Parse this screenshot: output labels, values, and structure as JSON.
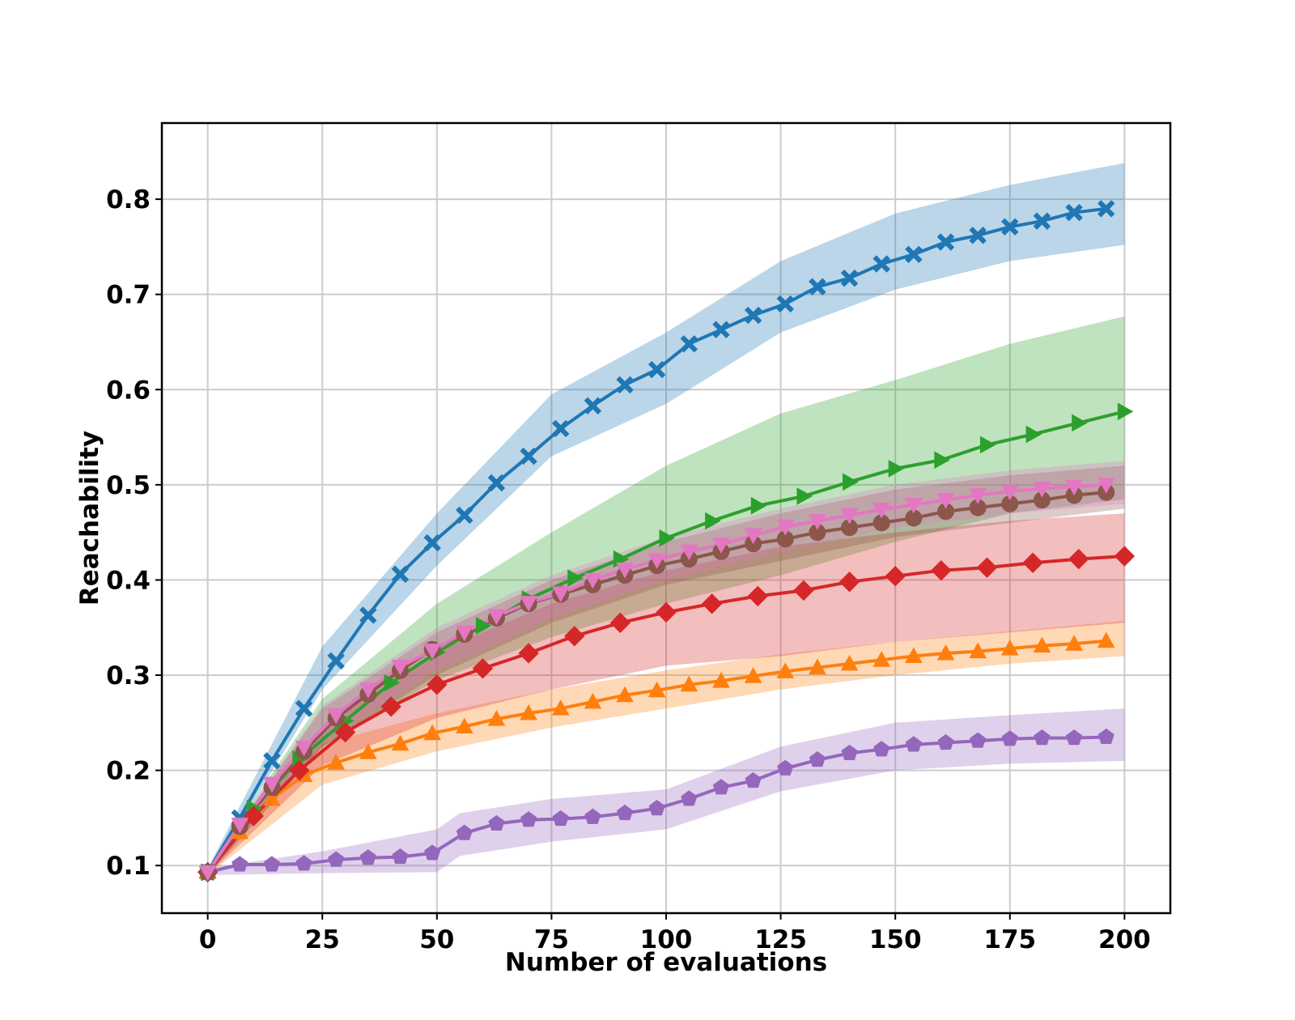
{
  "chart_data": {
    "type": "line",
    "title": "",
    "xlabel": "Number of evaluations",
    "ylabel": "Reachability",
    "xlim": [
      -10,
      210
    ],
    "ylim": [
      0.05,
      0.88
    ],
    "xticks": [
      0,
      25,
      50,
      75,
      100,
      125,
      150,
      175,
      200
    ],
    "yticks": [
      0.1,
      0.2,
      0.3,
      0.4,
      0.5,
      0.6,
      0.7,
      0.8
    ],
    "xtick_labels": [
      "0",
      "25",
      "50",
      "75",
      "100",
      "125",
      "150",
      "175",
      "200"
    ],
    "ytick_labels": [
      "0.1",
      "0.2",
      "0.3",
      "0.4",
      "0.5",
      "0.6",
      "0.7",
      "0.8"
    ],
    "grid": true,
    "legend": null,
    "series": [
      {
        "name": "blue-x",
        "color": "#1f77b4",
        "marker": "x",
        "x": [
          0,
          7,
          14,
          21,
          28,
          35,
          42,
          49,
          56,
          63,
          70,
          77,
          84,
          91,
          98,
          105,
          112,
          119,
          126,
          133,
          140,
          147,
          154,
          161,
          168,
          175,
          182,
          189,
          196
        ],
        "y": [
          0.093,
          0.15,
          0.21,
          0.265,
          0.315,
          0.363,
          0.406,
          0.439,
          0.468,
          0.502,
          0.53,
          0.559,
          0.583,
          0.605,
          0.621,
          0.648,
          0.663,
          0.678,
          0.69,
          0.708,
          0.717,
          0.732,
          0.742,
          0.755,
          0.762,
          0.771,
          0.777,
          0.786,
          0.79
        ],
        "band_x": [
          0,
          25,
          50,
          75,
          100,
          125,
          150,
          175,
          200
        ],
        "band_low": [
          0.09,
          0.285,
          0.415,
          0.53,
          0.585,
          0.66,
          0.705,
          0.735,
          0.752
        ],
        "band_high": [
          0.097,
          0.33,
          0.47,
          0.595,
          0.66,
          0.735,
          0.785,
          0.815,
          0.838
        ]
      },
      {
        "name": "orange-triangle-up",
        "color": "#ff7f0e",
        "marker": "triangle-up",
        "x": [
          0,
          7,
          14,
          21,
          28,
          35,
          42,
          49,
          56,
          63,
          70,
          77,
          84,
          91,
          98,
          105,
          112,
          119,
          126,
          133,
          140,
          147,
          154,
          161,
          168,
          175,
          182,
          189,
          196
        ],
        "y": [
          0.093,
          0.135,
          0.17,
          0.195,
          0.208,
          0.219,
          0.228,
          0.239,
          0.246,
          0.254,
          0.26,
          0.265,
          0.272,
          0.279,
          0.284,
          0.29,
          0.294,
          0.299,
          0.304,
          0.308,
          0.312,
          0.316,
          0.32,
          0.323,
          0.325,
          0.328,
          0.331,
          0.333,
          0.336
        ],
        "band_x": [
          0,
          25,
          50,
          75,
          100,
          125,
          150,
          175,
          200
        ],
        "band_low": [
          0.09,
          0.185,
          0.22,
          0.245,
          0.265,
          0.285,
          0.3,
          0.312,
          0.32
        ],
        "band_high": [
          0.097,
          0.228,
          0.26,
          0.285,
          0.305,
          0.322,
          0.335,
          0.346,
          0.357
        ]
      },
      {
        "name": "green-triangle-right",
        "color": "#2ca02c",
        "marker": "triangle-right",
        "x": [
          0,
          10,
          20,
          30,
          40,
          50,
          60,
          70,
          80,
          90,
          100,
          110,
          120,
          130,
          140,
          150,
          160,
          170,
          180,
          190,
          200
        ],
        "y": [
          0.093,
          0.16,
          0.212,
          0.252,
          0.292,
          0.324,
          0.352,
          0.38,
          0.402,
          0.422,
          0.444,
          0.462,
          0.478,
          0.488,
          0.503,
          0.517,
          0.526,
          0.542,
          0.553,
          0.565,
          0.577
        ],
        "band_x": [
          0,
          25,
          50,
          75,
          100,
          125,
          150,
          175,
          200
        ],
        "band_low": [
          0.09,
          0.225,
          0.295,
          0.34,
          0.375,
          0.405,
          0.44,
          0.47,
          0.485
        ],
        "band_high": [
          0.097,
          0.275,
          0.375,
          0.45,
          0.52,
          0.575,
          0.61,
          0.648,
          0.677
        ]
      },
      {
        "name": "red-diamond",
        "color": "#d62728",
        "marker": "diamond",
        "x": [
          0,
          10,
          20,
          30,
          40,
          50,
          60,
          70,
          80,
          90,
          100,
          110,
          120,
          130,
          140,
          150,
          160,
          170,
          180,
          190,
          200
        ],
        "y": [
          0.093,
          0.152,
          0.2,
          0.24,
          0.267,
          0.29,
          0.307,
          0.323,
          0.341,
          0.355,
          0.366,
          0.375,
          0.383,
          0.389,
          0.398,
          0.404,
          0.41,
          0.413,
          0.418,
          0.422,
          0.425
        ],
        "band_x": [
          0,
          25,
          50,
          75,
          100,
          125,
          150,
          175,
          200
        ],
        "band_low": [
          0.09,
          0.205,
          0.255,
          0.285,
          0.31,
          0.32,
          0.335,
          0.345,
          0.355
        ],
        "band_high": [
          0.097,
          0.245,
          0.325,
          0.375,
          0.41,
          0.435,
          0.45,
          0.462,
          0.47
        ]
      },
      {
        "name": "purple-pentagon",
        "color": "#9467bd",
        "marker": "pentagon",
        "x": [
          0,
          7,
          14,
          21,
          28,
          35,
          42,
          49,
          56,
          63,
          70,
          77,
          84,
          91,
          98,
          105,
          112,
          119,
          126,
          133,
          140,
          147,
          154,
          161,
          168,
          175,
          182,
          189,
          196
        ],
        "y": [
          0.093,
          0.101,
          0.101,
          0.102,
          0.106,
          0.108,
          0.109,
          0.113,
          0.134,
          0.144,
          0.148,
          0.149,
          0.151,
          0.155,
          0.16,
          0.17,
          0.182,
          0.189,
          0.202,
          0.211,
          0.218,
          0.222,
          0.227,
          0.229,
          0.231,
          0.233,
          0.234,
          0.234,
          0.235
        ],
        "band_x": [
          0,
          25,
          50,
          55,
          75,
          100,
          125,
          150,
          175,
          200
        ],
        "band_low": [
          0.09,
          0.092,
          0.093,
          0.11,
          0.125,
          0.138,
          0.178,
          0.2,
          0.207,
          0.21
        ],
        "band_high": [
          0.097,
          0.115,
          0.138,
          0.155,
          0.17,
          0.18,
          0.225,
          0.25,
          0.258,
          0.265
        ]
      },
      {
        "name": "brown-circle",
        "color": "#8c564b",
        "marker": "circle",
        "x": [
          0,
          7,
          14,
          21,
          28,
          35,
          42,
          49,
          56,
          63,
          70,
          77,
          84,
          91,
          98,
          105,
          112,
          119,
          126,
          133,
          140,
          147,
          154,
          161,
          168,
          175,
          182,
          189,
          196
        ],
        "y": [
          0.093,
          0.141,
          0.182,
          0.22,
          0.255,
          0.28,
          0.305,
          0.327,
          0.343,
          0.36,
          0.375,
          0.385,
          0.395,
          0.405,
          0.415,
          0.422,
          0.43,
          0.438,
          0.443,
          0.45,
          0.455,
          0.46,
          0.465,
          0.472,
          0.476,
          0.48,
          0.484,
          0.489,
          0.492
        ],
        "band_x": [
          0,
          25,
          50,
          75,
          100,
          125,
          150,
          175,
          200
        ],
        "band_low": [
          0.09,
          0.225,
          0.3,
          0.355,
          0.395,
          0.42,
          0.445,
          0.46,
          0.475
        ],
        "band_high": [
          0.097,
          0.265,
          0.345,
          0.4,
          0.44,
          0.47,
          0.495,
          0.51,
          0.52
        ]
      },
      {
        "name": "pink-triangle-down",
        "color": "#e377c2",
        "marker": "triangle-down",
        "x": [
          0,
          7,
          14,
          21,
          28,
          35,
          42,
          49,
          56,
          63,
          70,
          77,
          84,
          91,
          98,
          105,
          112,
          119,
          126,
          133,
          140,
          147,
          154,
          161,
          168,
          175,
          182,
          189,
          196
        ],
        "y": [
          0.093,
          0.143,
          0.186,
          0.224,
          0.258,
          0.285,
          0.309,
          0.326,
          0.345,
          0.362,
          0.376,
          0.386,
          0.4,
          0.411,
          0.421,
          0.43,
          0.437,
          0.447,
          0.456,
          0.462,
          0.468,
          0.474,
          0.479,
          0.484,
          0.489,
          0.493,
          0.496,
          0.498,
          0.5
        ],
        "band_x": [
          0,
          25,
          50,
          75,
          100,
          125,
          150,
          175,
          200
        ],
        "band_low": [
          0.09,
          0.228,
          0.305,
          0.36,
          0.4,
          0.43,
          0.455,
          0.47,
          0.48
        ],
        "band_high": [
          0.097,
          0.268,
          0.35,
          0.405,
          0.445,
          0.475,
          0.5,
          0.515,
          0.525
        ]
      }
    ]
  }
}
